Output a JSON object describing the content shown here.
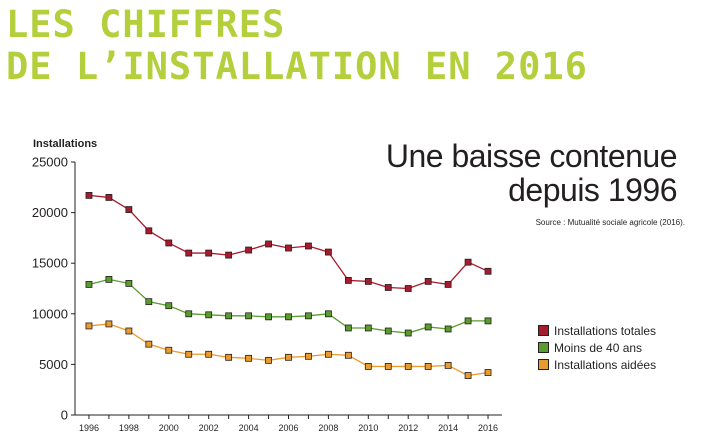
{
  "header": {
    "line1": "LES CHIFFRES",
    "line2": "DE L’INSTALLATION EN 2016",
    "color": "#b4cf3c"
  },
  "subtitle": {
    "line1": "Une baisse contenue",
    "line2": "depuis 1996"
  },
  "source": "Source : Mutualité sociale agricole (2016).",
  "chart_data": {
    "type": "line",
    "ylabel": "Installations",
    "xlabel": "",
    "x": [
      1996,
      1997,
      1998,
      1999,
      2000,
      2001,
      2002,
      2003,
      2004,
      2005,
      2006,
      2007,
      2008,
      2009,
      2010,
      2011,
      2012,
      2013,
      2014,
      2015,
      2016
    ],
    "x_ticks": [
      "1996",
      "1998",
      "2000",
      "2002",
      "2004",
      "2006",
      "2008",
      "2010",
      "2012",
      "2014",
      "2016"
    ],
    "y_ticks": [
      "0",
      "5000",
      "10000",
      "15000",
      "20000",
      "25000"
    ],
    "ylim": [
      0,
      25000
    ],
    "grid": false,
    "legend_position": "bottom-right",
    "series": [
      {
        "name": "Installations totales",
        "color": "#a61c2e",
        "values": [
          21700,
          21500,
          20300,
          18200,
          17000,
          16000,
          16000,
          15800,
          16300,
          16900,
          16500,
          16700,
          16100,
          13300,
          13200,
          12600,
          12500,
          13200,
          12900,
          15100,
          14200
        ]
      },
      {
        "name": "Moins de 40 ans",
        "color": "#5a9c2e",
        "values": [
          12900,
          13400,
          13000,
          11200,
          10800,
          10000,
          9900,
          9800,
          9800,
          9700,
          9700,
          9800,
          10000,
          8600,
          8600,
          8300,
          8100,
          8700,
          8500,
          9300,
          9300
        ]
      },
      {
        "name": "Installations aidées",
        "color": "#e99b2e",
        "values": [
          8800,
          9000,
          8300,
          7000,
          6400,
          6000,
          6000,
          5700,
          5600,
          5400,
          5700,
          5800,
          6000,
          5900,
          4800,
          4800,
          4800,
          4800,
          4900,
          3900,
          4200
        ]
      }
    ]
  }
}
